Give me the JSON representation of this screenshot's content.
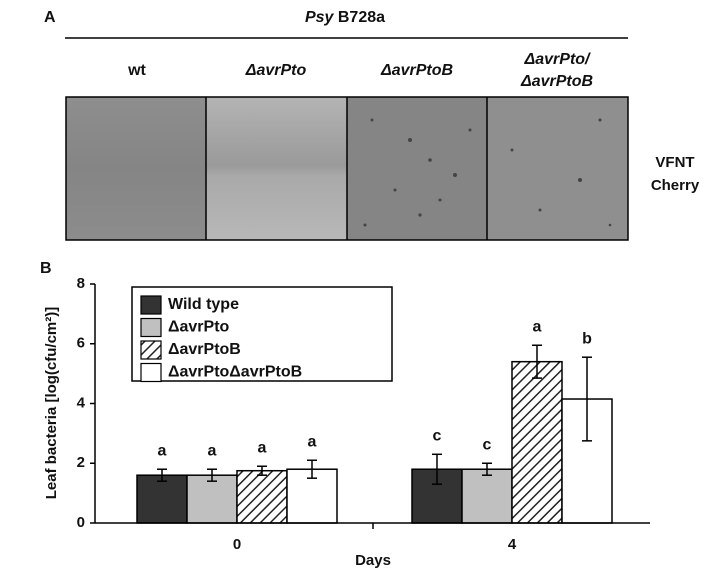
{
  "panel_a": {
    "label": "A",
    "title_italic": "Psy",
    "title_rest": "B728a",
    "columns": [
      [
        "wt"
      ],
      [
        "ΔavrPto"
      ],
      [
        "ΔavrPtoB"
      ],
      [
        "ΔavrPto/",
        "ΔavrPtoB"
      ]
    ],
    "row_label": [
      "VFNT",
      "Cherry"
    ]
  },
  "chart_data": {
    "type": "bar",
    "panel_label": "B",
    "ylabel": "Leaf bacteria [log(cfu/cm²)]",
    "xlabel": "Days",
    "categories": [
      "0",
      "4"
    ],
    "series": [
      {
        "name": "Wild type",
        "color": "#333333",
        "hatch": false,
        "values": [
          1.6,
          1.8
        ],
        "errors": [
          0.2,
          0.5
        ],
        "letters": [
          "a",
          "c"
        ]
      },
      {
        "name": "ΔavrPto",
        "color": "#c0c0c0",
        "hatch": false,
        "values": [
          1.6,
          1.8
        ],
        "errors": [
          0.2,
          0.2
        ],
        "letters": [
          "a",
          "c"
        ]
      },
      {
        "name": "ΔavrPtoB",
        "color": "#ffffff",
        "hatch": true,
        "values": [
          1.75,
          5.4
        ],
        "errors": [
          0.15,
          0.55
        ],
        "letters": [
          "a",
          "a"
        ]
      },
      {
        "name": "ΔavrPtoΔavrPtoB",
        "color": "#ffffff",
        "hatch": false,
        "values": [
          1.8,
          4.15
        ],
        "errors": [
          0.3,
          1.4
        ],
        "letters": [
          "a",
          "b"
        ]
      }
    ],
    "ylim": [
      0,
      8
    ],
    "yticks": [
      0,
      2,
      4,
      6,
      8
    ],
    "grid": false
  }
}
